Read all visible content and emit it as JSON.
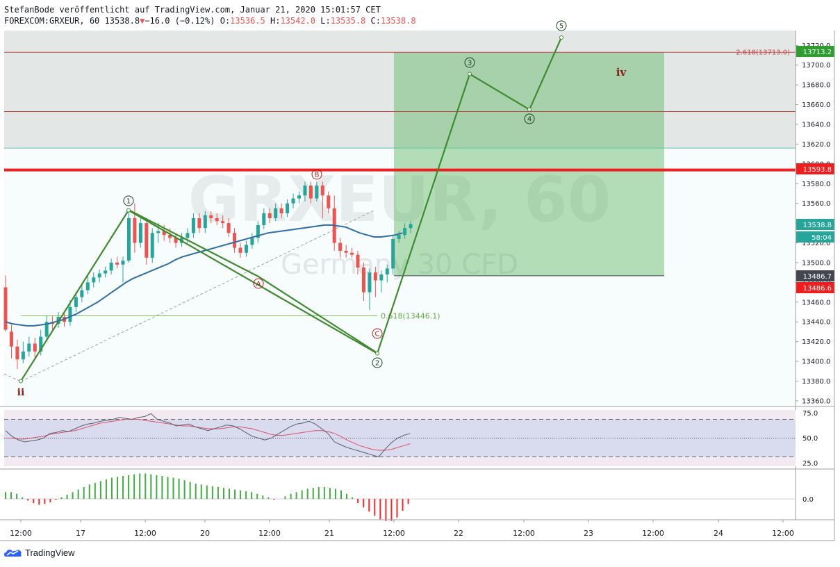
{
  "header": {
    "line1": "StefanBode veröffentlicht auf TradingView.com, Januar 21, 2020 15:01:57 CET",
    "symbol": "FOREXCOM:GRXEUR, 60",
    "last": "13538.8",
    "change": "−16.0 (−0.12%)",
    "o_label": "O:",
    "o_value": "13536.5",
    "h_label": "H:",
    "h_value": "13542.0",
    "l_label": "L:",
    "l_value": "13535.8",
    "c_label": "C:",
    "c_value": "13538.8"
  },
  "watermark": {
    "symbol": "GRXEUR, 60",
    "name": "Germany 30 CFD"
  },
  "price_axis": {
    "ticks": [
      "13720.0",
      "13700.0",
      "13680.0",
      "13660.0",
      "13640.0",
      "13620.0",
      "13600.0",
      "13580.0",
      "13560.0",
      "13540.0",
      "13520.0",
      "13500.0",
      "13480.0",
      "13460.0",
      "13440.0",
      "13420.0",
      "13400.0",
      "13380.0",
      "13360.0"
    ],
    "badges": [
      {
        "text": "13713.2",
        "color": "#2e9c2e"
      },
      {
        "text": "13593.8",
        "color": "#ef1d1d"
      },
      {
        "text": "13538.8",
        "color": "#26a69a"
      },
      {
        "text": "58:04",
        "color": "#26a69a"
      },
      {
        "text": "13486.7",
        "color": "#434651"
      },
      {
        "text": "13486.6",
        "color": "#ef1d1d"
      }
    ]
  },
  "rsi_axis": {
    "ticks": [
      "75.0",
      "50.0",
      "25.0"
    ]
  },
  "osc_axis": {
    "ticks": [
      "0.0"
    ]
  },
  "time_axis": {
    "ticks": [
      "12:00",
      "17",
      "12:00",
      "20",
      "12:00",
      "21",
      "12:00",
      "22",
      "12:00",
      "23",
      "12:00",
      "24",
      "12:00"
    ]
  },
  "annotations": {
    "fib_upper": "2.618(13713.0)",
    "fib_lower": "0.618(13446.1)",
    "wave_iv": "iv",
    "wave_ii": "ii",
    "circle_labels": [
      "1",
      "2",
      "3",
      "4",
      "5",
      "A",
      "B",
      "C"
    ]
  },
  "colors": {
    "up": "#26a69a",
    "down": "#ef5350",
    "wave": "#3f8a2e",
    "sma": "#2f6ea5",
    "red_line": "#ef1d1d",
    "green_zone": "#4caf50"
  },
  "chart_data": {
    "type": "candlestick",
    "symbol": "FOREXCOM:GRXEUR",
    "timeframe": "60",
    "ylim": [
      13355,
      13735
    ],
    "candles": [
      {
        "o": 13475,
        "c": 13432,
        "h": 13487,
        "l": 13430
      },
      {
        "o": 13430,
        "c": 13415,
        "h": 13437,
        "l": 13403
      },
      {
        "o": 13415,
        "c": 13402,
        "h": 13422,
        "l": 13392
      },
      {
        "o": 13402,
        "c": 13410,
        "h": 13420,
        "l": 13398
      },
      {
        "o": 13410,
        "c": 13418,
        "h": 13425,
        "l": 13405
      },
      {
        "o": 13418,
        "c": 13410,
        "h": 13424,
        "l": 13404
      },
      {
        "o": 13410,
        "c": 13425,
        "h": 13432,
        "l": 13406
      },
      {
        "o": 13425,
        "c": 13440,
        "h": 13446,
        "l": 13420
      },
      {
        "o": 13440,
        "c": 13438,
        "h": 13446,
        "l": 13430
      },
      {
        "o": 13438,
        "c": 13445,
        "h": 13450,
        "l": 13434
      },
      {
        "o": 13445,
        "c": 13440,
        "h": 13450,
        "l": 13435
      },
      {
        "o": 13440,
        "c": 13455,
        "h": 13462,
        "l": 13436
      },
      {
        "o": 13455,
        "c": 13465,
        "h": 13470,
        "l": 13450
      },
      {
        "o": 13465,
        "c": 13472,
        "h": 13478,
        "l": 13460
      },
      {
        "o": 13472,
        "c": 13480,
        "h": 13486,
        "l": 13468
      },
      {
        "o": 13480,
        "c": 13485,
        "h": 13490,
        "l": 13475
      },
      {
        "o": 13485,
        "c": 13489,
        "h": 13493,
        "l": 13480
      },
      {
        "o": 13489,
        "c": 13492,
        "h": 13496,
        "l": 13485
      },
      {
        "o": 13492,
        "c": 13500,
        "h": 13504,
        "l": 13488
      },
      {
        "o": 13500,
        "c": 13498,
        "h": 13506,
        "l": 13494
      },
      {
        "o": 13498,
        "c": 13502,
        "h": 13506,
        "l": 13480
      },
      {
        "o": 13502,
        "c": 13545,
        "h": 13552,
        "l": 13500
      },
      {
        "o": 13545,
        "c": 13520,
        "h": 13560,
        "l": 13510
      },
      {
        "o": 13520,
        "c": 13540,
        "h": 13545,
        "l": 13515
      },
      {
        "o": 13540,
        "c": 13505,
        "h": 13545,
        "l": 13498
      },
      {
        "o": 13505,
        "c": 13530,
        "h": 13535,
        "l": 13500
      },
      {
        "o": 13530,
        "c": 13532,
        "h": 13540,
        "l": 13520
      },
      {
        "o": 13532,
        "c": 13528,
        "h": 13538,
        "l": 13522
      },
      {
        "o": 13528,
        "c": 13525,
        "h": 13535,
        "l": 13520
      },
      {
        "o": 13525,
        "c": 13520,
        "h": 13530,
        "l": 13515
      },
      {
        "o": 13520,
        "c": 13525,
        "h": 13530,
        "l": 13516
      },
      {
        "o": 13525,
        "c": 13530,
        "h": 13535,
        "l": 13520
      },
      {
        "o": 13530,
        "c": 13545,
        "h": 13550,
        "l": 13525
      },
      {
        "o": 13545,
        "c": 13535,
        "h": 13550,
        "l": 13530
      },
      {
        "o": 13535,
        "c": 13548,
        "h": 13552,
        "l": 13530
      },
      {
        "o": 13548,
        "c": 13545,
        "h": 13552,
        "l": 13540
      },
      {
        "o": 13545,
        "c": 13542,
        "h": 13550,
        "l": 13538
      },
      {
        "o": 13542,
        "c": 13540,
        "h": 13548,
        "l": 13535
      },
      {
        "o": 13540,
        "c": 13530,
        "h": 13545,
        "l": 13526
      },
      {
        "o": 13530,
        "c": 13515,
        "h": 13535,
        "l": 13510
      },
      {
        "o": 13515,
        "c": 13510,
        "h": 13520,
        "l": 13505
      },
      {
        "o": 13510,
        "c": 13518,
        "h": 13522,
        "l": 13506
      },
      {
        "o": 13518,
        "c": 13525,
        "h": 13530,
        "l": 13514
      },
      {
        "o": 13525,
        "c": 13538,
        "h": 13542,
        "l": 13520
      },
      {
        "o": 13538,
        "c": 13550,
        "h": 13555,
        "l": 13534
      },
      {
        "o": 13550,
        "c": 13545,
        "h": 13555,
        "l": 13540
      },
      {
        "o": 13545,
        "c": 13555,
        "h": 13560,
        "l": 13542
      },
      {
        "o": 13555,
        "c": 13550,
        "h": 13560,
        "l": 13545
      },
      {
        "o": 13550,
        "c": 13560,
        "h": 13564,
        "l": 13546
      },
      {
        "o": 13560,
        "c": 13565,
        "h": 13570,
        "l": 13555
      },
      {
        "o": 13565,
        "c": 13568,
        "h": 13572,
        "l": 13560
      },
      {
        "o": 13568,
        "c": 13578,
        "h": 13582,
        "l": 13562
      },
      {
        "o": 13578,
        "c": 13565,
        "h": 13582,
        "l": 13560
      },
      {
        "o": 13565,
        "c": 13578,
        "h": 13582,
        "l": 13562
      },
      {
        "o": 13578,
        "c": 13568,
        "h": 13582,
        "l": 13545
      },
      {
        "o": 13568,
        "c": 13555,
        "h": 13572,
        "l": 13550
      },
      {
        "o": 13555,
        "c": 13520,
        "h": 13568,
        "l": 13512
      },
      {
        "o": 13520,
        "c": 13512,
        "h": 13525,
        "l": 13505
      },
      {
        "o": 13512,
        "c": 13510,
        "h": 13518,
        "l": 13505
      },
      {
        "o": 13510,
        "c": 13508,
        "h": 13515,
        "l": 13505
      },
      {
        "o": 13508,
        "c": 13495,
        "h": 13512,
        "l": 13488
      },
      {
        "o": 13495,
        "c": 13470,
        "h": 13500,
        "l": 13461
      },
      {
        "o": 13470,
        "c": 13490,
        "h": 13494,
        "l": 13452
      },
      {
        "o": 13490,
        "c": 13482,
        "h": 13496,
        "l": 13465
      },
      {
        "o": 13482,
        "c": 13488,
        "h": 13492,
        "l": 13470
      },
      {
        "o": 13488,
        "c": 13494,
        "h": 13498,
        "l": 13480
      },
      {
        "o": 13494,
        "c": 13524,
        "h": 13528,
        "l": 13488
      },
      {
        "o": 13524,
        "c": 13528,
        "h": 13532,
        "l": 13520
      },
      {
        "o": 13528,
        "c": 13535,
        "h": 13540,
        "l": 13524
      },
      {
        "o": 13535,
        "c": 13539,
        "h": 13542,
        "l": 13530
      }
    ],
    "sma": [
      13440,
      13438,
      13437,
      13436,
      13436,
      13437,
      13438,
      13440,
      13442,
      13445,
      13448,
      13452,
      13456,
      13460,
      13465,
      13470,
      13475,
      13480,
      13484,
      13487,
      13490,
      13493,
      13496,
      13499,
      13503,
      13506,
      13508,
      13510,
      13512,
      13514,
      13516,
      13518,
      13520,
      13522,
      13524,
      13526,
      13528,
      13530,
      13531,
      13532,
      13533,
      13534,
      13535,
      13536,
      13537,
      13538,
      13538,
      13537,
      13536,
      13533,
      13530,
      13528,
      13526,
      13526,
      13527,
      13528,
      13530
    ],
    "elliott_waves": [
      {
        "label": "ii",
        "price": 13380
      },
      {
        "label": "1",
        "price": 13553
      },
      {
        "label": "2",
        "price": 13408
      },
      {
        "label": "3",
        "price": 13691
      },
      {
        "label": "4",
        "price": 13655
      },
      {
        "label": "5",
        "price": 13728
      }
    ],
    "abc_labels": [
      {
        "label": "A",
        "price": 13508
      },
      {
        "label": "B",
        "price": 13582
      },
      {
        "label": "C",
        "price": 13433
      }
    ],
    "levels": [
      {
        "label": "2.618(13713.0)",
        "price": 13713.0
      },
      {
        "price": 13653
      },
      {
        "price": 13616
      },
      {
        "price": 13593.8
      },
      {
        "label": "0.618(13446.1)",
        "price": 13446.1
      },
      {
        "price": 13486.7
      }
    ],
    "target_zone": {
      "top": 13713.2,
      "bottom": 13486.7
    },
    "rsi": {
      "ylim": [
        20,
        80
      ],
      "upper": 70,
      "mid": 50,
      "lower": 30,
      "values": [
        58,
        52,
        48,
        46,
        47,
        48,
        50,
        55,
        56,
        58,
        57,
        60,
        63,
        65,
        66,
        68,
        69,
        70,
        72,
        71,
        70,
        72,
        73,
        76,
        70,
        68,
        66,
        63,
        64,
        65,
        62,
        60,
        58,
        60,
        62,
        64,
        63,
        60,
        56,
        52,
        50,
        48,
        50,
        54,
        58,
        62,
        65,
        66,
        68,
        65,
        60,
        55,
        46,
        43,
        40,
        38,
        36,
        34,
        32,
        30,
        38,
        45,
        50,
        53,
        55
      ],
      "signal": [
        50,
        50,
        49,
        49,
        50,
        51,
        52,
        54,
        55,
        56,
        57,
        58,
        60,
        62,
        64,
        66,
        67,
        68,
        69,
        70,
        70,
        70,
        69,
        68,
        67,
        66,
        65,
        64,
        63,
        63,
        62,
        61,
        60,
        60,
        60,
        61,
        62,
        62,
        61,
        60,
        58,
        56,
        54,
        53,
        53,
        54,
        55,
        56,
        57,
        58,
        58,
        57,
        55,
        52,
        48,
        45,
        42,
        40,
        38,
        37,
        37,
        38,
        40,
        42,
        44
      ]
    },
    "histogram": {
      "values": [
        8,
        8,
        6,
        2,
        -2,
        -5,
        -7,
        -6,
        -4,
        -1,
        2,
        5,
        8,
        11,
        14,
        17,
        19,
        21,
        23,
        25,
        26,
        27,
        28,
        29,
        30,
        30,
        29,
        28,
        27,
        26,
        25,
        24,
        22,
        20,
        18,
        17,
        16,
        15,
        14,
        13,
        12,
        11,
        10,
        9,
        8,
        6,
        4,
        2,
        -1,
        0,
        3,
        6,
        8,
        10,
        12,
        13,
        14,
        14,
        13,
        12,
        10,
        6,
        2,
        -5,
        -10,
        -15,
        -20,
        -24,
        -26,
        -26,
        -22,
        -14,
        -6
      ]
    },
    "time_labels": [
      "12:00",
      "17",
      "12:00",
      "20",
      "12:00",
      "21",
      "12:00",
      "22",
      "12:00",
      "23",
      "12:00",
      "24",
      "12:00"
    ]
  }
}
